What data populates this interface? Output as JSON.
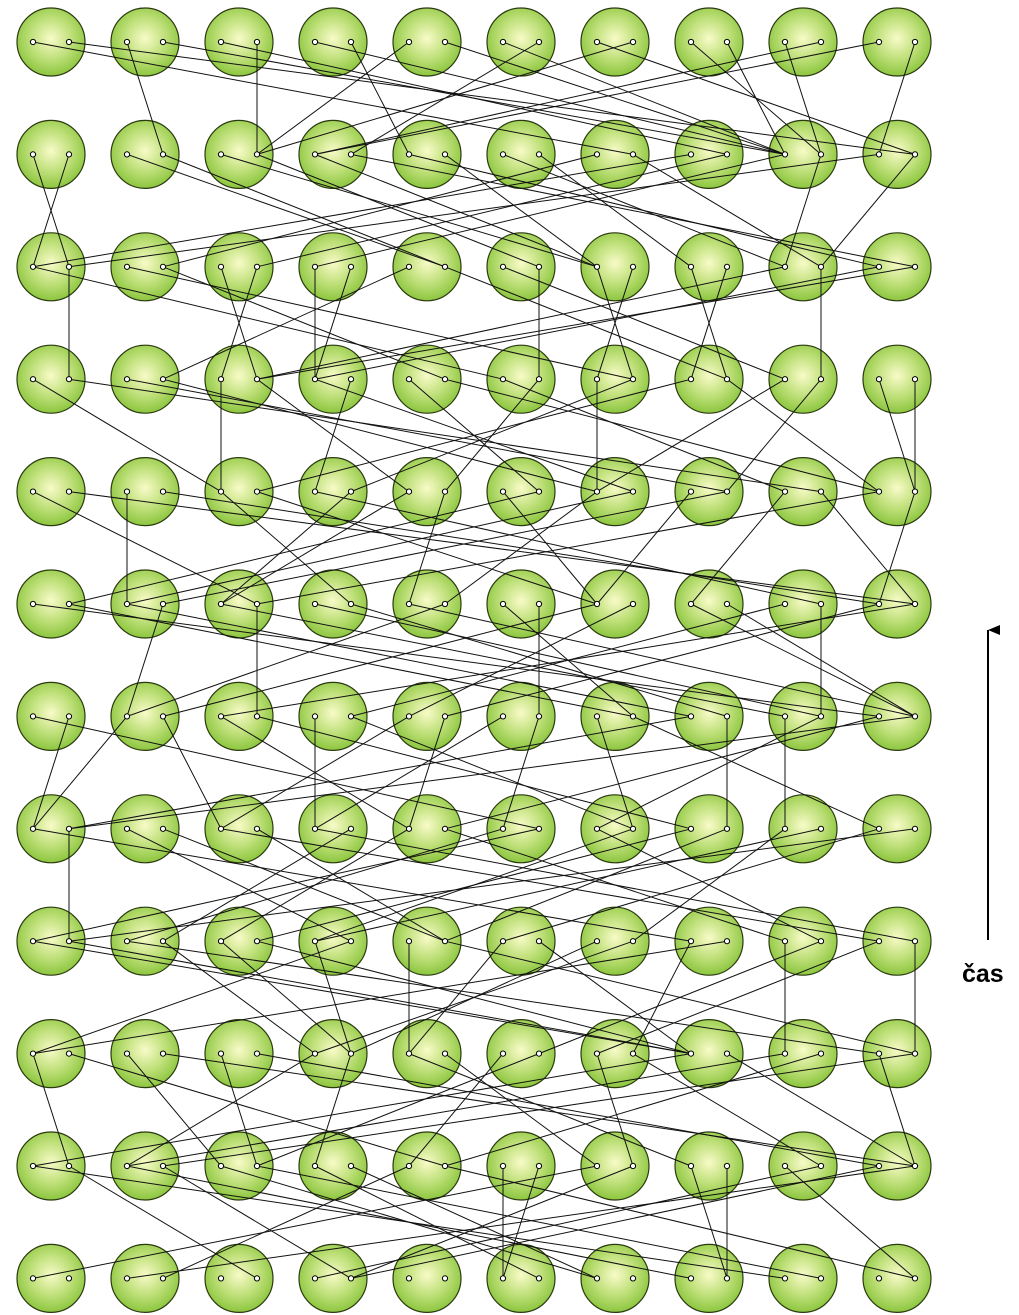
{
  "diagram": {
    "rows": 12,
    "columns": 10,
    "node_fill_center": "#f8fbc8",
    "node_fill_mid": "#bfe07a",
    "node_fill_edge": "#8cc63f",
    "node_stroke": "#2b3a10",
    "line_color": "#111111",
    "time_label": "čas",
    "time_arrow": "up-arrow"
  }
}
